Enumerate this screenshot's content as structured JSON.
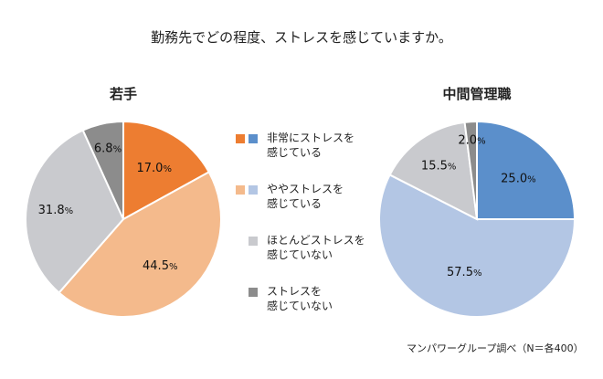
{
  "title": "勤務先でどの程度、ストレスを感じていますか。",
  "source": "マンパワーグループ調べ（N＝各400）",
  "legend": [
    {
      "label_line1": "非常にストレスを",
      "label_line2": "感じている",
      "colors": [
        "#ED7D31",
        "#5B8FCB"
      ]
    },
    {
      "label_line1": "ややストレスを",
      "label_line2": "感じている",
      "colors": [
        "#F4BA8C",
        "#B3C6E4"
      ]
    },
    {
      "label_line1": "ほとんどストレスを",
      "label_line2": "感じていない",
      "colors": [
        "#C9CACE"
      ]
    },
    {
      "label_line1": "ストレスを",
      "label_line2": "感じていない",
      "colors": [
        "#8C8C8C"
      ]
    }
  ],
  "chart_data": [
    {
      "type": "pie",
      "title": "若手",
      "categories": [
        "非常にストレスを感じている",
        "ややストレスを感じている",
        "ほとんどストレスを感じていない",
        "ストレスを感じていない"
      ],
      "values": [
        17.0,
        44.5,
        31.8,
        6.8
      ],
      "labels": [
        "17.0",
        "44.5",
        "31.8",
        "6.8"
      ],
      "colors": [
        "#ED7D31",
        "#F4BA8C",
        "#C9CACE",
        "#8C8C8C"
      ]
    },
    {
      "type": "pie",
      "title": "中間管理職",
      "categories": [
        "非常にストレスを感じている",
        "ややストレスを感じている",
        "ほとんどストレスを感じていない",
        "ストレスを感じていない"
      ],
      "values": [
        25.0,
        57.5,
        15.5,
        2.0
      ],
      "labels": [
        "25.0",
        "57.5",
        "15.5",
        "2.0"
      ],
      "colors": [
        "#5B8FCB",
        "#B3C6E4",
        "#C9CACE",
        "#8C8C8C"
      ]
    }
  ],
  "percent_sign": "%"
}
